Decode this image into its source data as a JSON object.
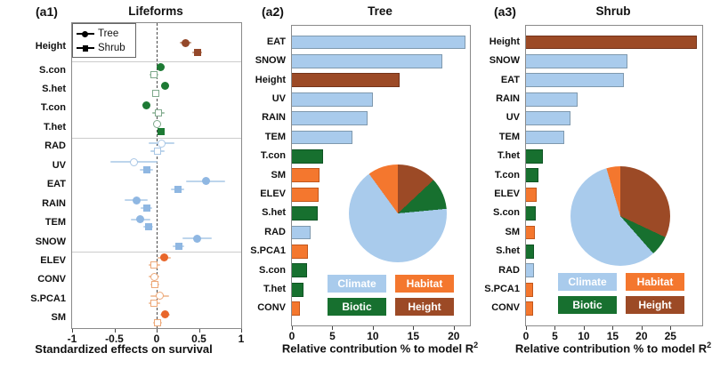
{
  "figure": {
    "background": "#ffffff"
  },
  "colors": {
    "bar": {
      "climate": "#a9cbec",
      "biotic": "#17702f",
      "habitat": "#f4772e",
      "height": "#9c4a26"
    },
    "bar_border": {
      "climate": "#7f99ae",
      "biotic": "#0f5424",
      "habitat": "#c2571c",
      "height": "#73331a"
    },
    "marker": {
      "climate": "#8fb7e2",
      "biotic": "#1d7a34",
      "habitat": "#e8662a",
      "height": "#94482a"
    },
    "open_stroke": {
      "climate": "#a9c7e6",
      "biotic": "#7fa98c",
      "habitat": "#eda878",
      "height": "#b98a70"
    },
    "err": {
      "climate": "#bdd5ec",
      "biotic": "#a5c4ad",
      "habitat": "#f2c5a4",
      "height": "#c59c85"
    },
    "pie": {
      "Climate": "#a9cbec",
      "Habitat": "#f4772e",
      "Biotic": "#17702f",
      "Height": "#9c4a26"
    }
  },
  "panels": {
    "a1": {
      "tag": "(a1)",
      "title": "Lifeforms",
      "xlabel": "Standardized effects on survival",
      "legend": {
        "tree": "Tree",
        "shrub": "Shrub"
      }
    },
    "a2": {
      "tag": "(a2)",
      "title": "Tree",
      "xlabel": "Relative contribution % to model R",
      "xlabel_sup": "2"
    },
    "a3": {
      "tag": "(a3)",
      "title": "Shrub",
      "xlabel": "Relative contribution % to model R",
      "xlabel_sup": "2"
    }
  },
  "category_legend": [
    {
      "label": "Climate",
      "color": "#a9cbec"
    },
    {
      "label": "Habitat",
      "color": "#f4772e"
    },
    {
      "label": "Biotic",
      "color": "#17702f"
    },
    {
      "label": "Height",
      "color": "#9c4a26"
    }
  ],
  "chart_data": [
    {
      "type": "scatter",
      "panel": "a1",
      "title": "Lifeforms",
      "xlabel": "Standardized effects on survival",
      "xlim": [
        -1,
        1
      ],
      "x_ticks": [
        -1,
        -0.5,
        0,
        0.5,
        1
      ],
      "series_legend": [
        "Tree",
        "Shrub"
      ],
      "note": "dot-whisker plot; filled = significant, open = non-significant; circle = Tree, square = Shrub",
      "groups": [
        {
          "name": "height",
          "rows": [
            {
              "var": "Height",
              "tree": {
                "est": 0.34,
                "lo": 0.27,
                "hi": 0.41,
                "filled": true
              },
              "shrub": {
                "est": 0.48,
                "lo": 0.42,
                "hi": 0.54,
                "filled": true
              }
            }
          ]
        },
        {
          "name": "biotic",
          "rows": [
            {
              "var": "S.con",
              "tree": {
                "est": 0.05,
                "lo": 0.01,
                "hi": 0.09,
                "filled": true
              },
              "shrub": {
                "est": -0.03,
                "lo": -0.08,
                "hi": 0.02,
                "filled": false
              }
            },
            {
              "var": "S.het",
              "tree": {
                "est": 0.1,
                "lo": 0.05,
                "hi": 0.15,
                "filled": true
              },
              "shrub": {
                "est": -0.01,
                "lo": -0.05,
                "hi": 0.03,
                "filled": false
              }
            },
            {
              "var": "T.con",
              "tree": {
                "est": -0.12,
                "lo": -0.17,
                "hi": -0.07,
                "filled": true
              },
              "shrub": {
                "est": 0.02,
                "lo": -0.05,
                "hi": 0.09,
                "filled": false
              }
            },
            {
              "var": "T.het",
              "tree": {
                "est": 0.01,
                "lo": -0.03,
                "hi": 0.05,
                "filled": false
              },
              "shrub": {
                "est": 0.05,
                "lo": 0.02,
                "hi": 0.08,
                "filled": true
              }
            }
          ]
        },
        {
          "name": "climate",
          "rows": [
            {
              "var": "RAD",
              "tree": {
                "est": 0.06,
                "lo": -0.09,
                "hi": 0.21,
                "filled": false
              },
              "shrub": {
                "est": 0.01,
                "lo": -0.07,
                "hi": 0.09,
                "filled": false
              }
            },
            {
              "var": "UV",
              "tree": {
                "est": -0.27,
                "lo": -0.55,
                "hi": 0.01,
                "filled": false
              },
              "shrub": {
                "est": -0.12,
                "lo": -0.2,
                "hi": -0.04,
                "filled": true
              }
            },
            {
              "var": "EAT",
              "tree": {
                "est": 0.58,
                "lo": 0.35,
                "hi": 0.81,
                "filled": true
              },
              "shrub": {
                "est": 0.25,
                "lo": 0.17,
                "hi": 0.33,
                "filled": true
              }
            },
            {
              "var": "RAIN",
              "tree": {
                "est": -0.24,
                "lo": -0.38,
                "hi": -0.1,
                "filled": true
              },
              "shrub": {
                "est": -0.12,
                "lo": -0.19,
                "hi": -0.05,
                "filled": true
              }
            },
            {
              "var": "TEM",
              "tree": {
                "est": -0.19,
                "lo": -0.31,
                "hi": -0.07,
                "filled": true
              },
              "shrub": {
                "est": -0.1,
                "lo": -0.16,
                "hi": -0.04,
                "filled": true
              }
            },
            {
              "var": "SNOW",
              "tree": {
                "est": 0.48,
                "lo": 0.31,
                "hi": 0.65,
                "filled": true
              },
              "shrub": {
                "est": 0.26,
                "lo": 0.19,
                "hi": 0.33,
                "filled": true
              }
            }
          ]
        },
        {
          "name": "habitat",
          "rows": [
            {
              "var": "ELEV",
              "tree": {
                "est": 0.09,
                "lo": 0.01,
                "hi": 0.17,
                "filled": true
              },
              "shrub": {
                "est": -0.03,
                "lo": -0.1,
                "hi": 0.04,
                "filled": false
              }
            },
            {
              "var": "CONV",
              "tree": {
                "est": -0.03,
                "lo": -0.09,
                "hi": 0.03,
                "filled": false
              },
              "shrub": {
                "est": -0.02,
                "lo": -0.07,
                "hi": 0.03,
                "filled": false
              }
            },
            {
              "var": "S.PCA1",
              "tree": {
                "est": 0.04,
                "lo": -0.07,
                "hi": 0.15,
                "filled": false
              },
              "shrub": {
                "est": -0.03,
                "lo": -0.1,
                "hi": 0.04,
                "filled": false
              }
            },
            {
              "var": "SM",
              "tree": {
                "est": 0.1,
                "lo": 0.04,
                "hi": 0.16,
                "filled": true
              },
              "shrub": {
                "est": 0.01,
                "lo": -0.04,
                "hi": 0.06,
                "filled": false
              }
            }
          ]
        }
      ]
    },
    {
      "type": "bar",
      "panel": "a2",
      "title": "Tree",
      "xlabel": "Relative contribution % to model R²",
      "xlim": [
        0,
        22
      ],
      "x_ticks": [
        0,
        5,
        10,
        15,
        20
      ],
      "bars": [
        {
          "label": "EAT",
          "value": 21.5,
          "group": "climate"
        },
        {
          "label": "SNOW",
          "value": 18.6,
          "group": "climate"
        },
        {
          "label": "Height",
          "value": 13.3,
          "group": "height"
        },
        {
          "label": "UV",
          "value": 10.0,
          "group": "climate"
        },
        {
          "label": "RAIN",
          "value": 9.4,
          "group": "climate"
        },
        {
          "label": "TEM",
          "value": 7.5,
          "group": "climate"
        },
        {
          "label": "T.con",
          "value": 3.8,
          "group": "biotic"
        },
        {
          "label": "SM",
          "value": 3.4,
          "group": "habitat"
        },
        {
          "label": "ELEV",
          "value": 3.3,
          "group": "habitat"
        },
        {
          "label": "S.het",
          "value": 3.2,
          "group": "biotic"
        },
        {
          "label": "RAD",
          "value": 2.3,
          "group": "climate"
        },
        {
          "label": "S.PCA1",
          "value": 2.0,
          "group": "habitat"
        },
        {
          "label": "S.con",
          "value": 1.9,
          "group": "biotic"
        },
        {
          "label": "T.het",
          "value": 1.4,
          "group": "biotic"
        },
        {
          "label": "CONV",
          "value": 1.0,
          "group": "habitat"
        }
      ],
      "pie": {
        "order": [
          "Height",
          "Biotic",
          "Climate",
          "Habitat"
        ],
        "values": {
          "Height": 13,
          "Biotic": 10.5,
          "Climate": 66.5,
          "Habitat": 10
        }
      }
    },
    {
      "type": "bar",
      "panel": "a3",
      "title": "Shrub",
      "xlabel": "Relative contribution % to model R²",
      "xlim": [
        0,
        30.5
      ],
      "x_ticks": [
        0,
        5,
        10,
        15,
        20,
        25
      ],
      "bars": [
        {
          "label": "Height",
          "value": 29.5,
          "group": "height"
        },
        {
          "label": "SNOW",
          "value": 17.5,
          "group": "climate"
        },
        {
          "label": "EAT",
          "value": 16.9,
          "group": "climate"
        },
        {
          "label": "RAIN",
          "value": 8.9,
          "group": "climate"
        },
        {
          "label": "UV",
          "value": 7.7,
          "group": "climate"
        },
        {
          "label": "TEM",
          "value": 6.7,
          "group": "climate"
        },
        {
          "label": "T.het",
          "value": 2.9,
          "group": "biotic"
        },
        {
          "label": "T.con",
          "value": 2.1,
          "group": "biotic"
        },
        {
          "label": "ELEV",
          "value": 1.8,
          "group": "habitat"
        },
        {
          "label": "S.con",
          "value": 1.7,
          "group": "biotic"
        },
        {
          "label": "SM",
          "value": 1.6,
          "group": "habitat"
        },
        {
          "label": "S.het",
          "value": 1.4,
          "group": "biotic"
        },
        {
          "label": "RAD",
          "value": 1.4,
          "group": "climate"
        },
        {
          "label": "S.PCA1",
          "value": 1.3,
          "group": "habitat"
        },
        {
          "label": "CONV",
          "value": 1.2,
          "group": "habitat"
        }
      ],
      "pie": {
        "order": [
          "Height",
          "Biotic",
          "Climate",
          "Habitat"
        ],
        "values": {
          "Height": 32,
          "Biotic": 6.5,
          "Climate": 57,
          "Habitat": 4.5
        }
      }
    }
  ]
}
